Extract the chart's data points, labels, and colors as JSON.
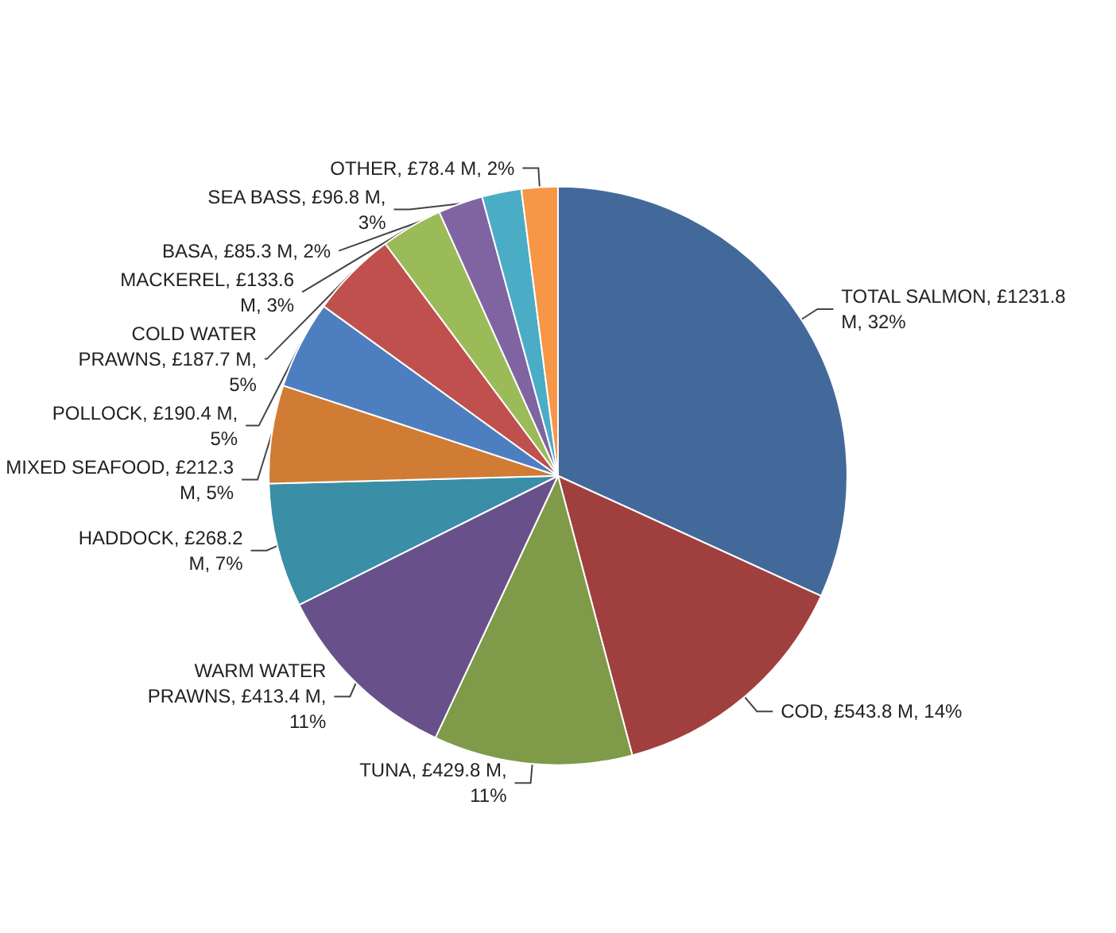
{
  "chart_data": {
    "type": "pie",
    "categories": [
      "TOTAL SALMON",
      "COD",
      "TUNA",
      "WARM WATER PRAWNS",
      "HADDOCK",
      "MIXED SEAFOOD",
      "POLLOCK",
      "COLD WATER PRAWNS",
      "MACKEREL",
      "SEA BASS",
      "BASA",
      "OTHER"
    ],
    "values": [
      1231.8,
      543.8,
      429.8,
      413.4,
      268.2,
      212.3,
      190.4,
      187.7,
      133.6,
      96.8,
      85.3,
      78.4
    ],
    "value_labels": [
      "£1231.8 M, 32%",
      "£543.8 M, 14%",
      "£429.8 M, 11%",
      "£413.4 M, 11%",
      "£268.2 M, 7%",
      "£212.3 M, 5%",
      "£190.4 M, 5%",
      "£187.7 M, 5%",
      "£133.6 M, 3%",
      "£96.8 M, 3%",
      "£85.3 M, 2%",
      "£78.4 M, 2%"
    ],
    "colors": [
      "#43699b",
      "#a0403e",
      "#7f9a48",
      "#68518a",
      "#3a8ea5",
      "#d07c35",
      "#4d7fc0",
      "#c0504d",
      "#9bbb59",
      "#8064a2",
      "#4bacc6",
      "#f79646"
    ],
    "legend": false
  }
}
